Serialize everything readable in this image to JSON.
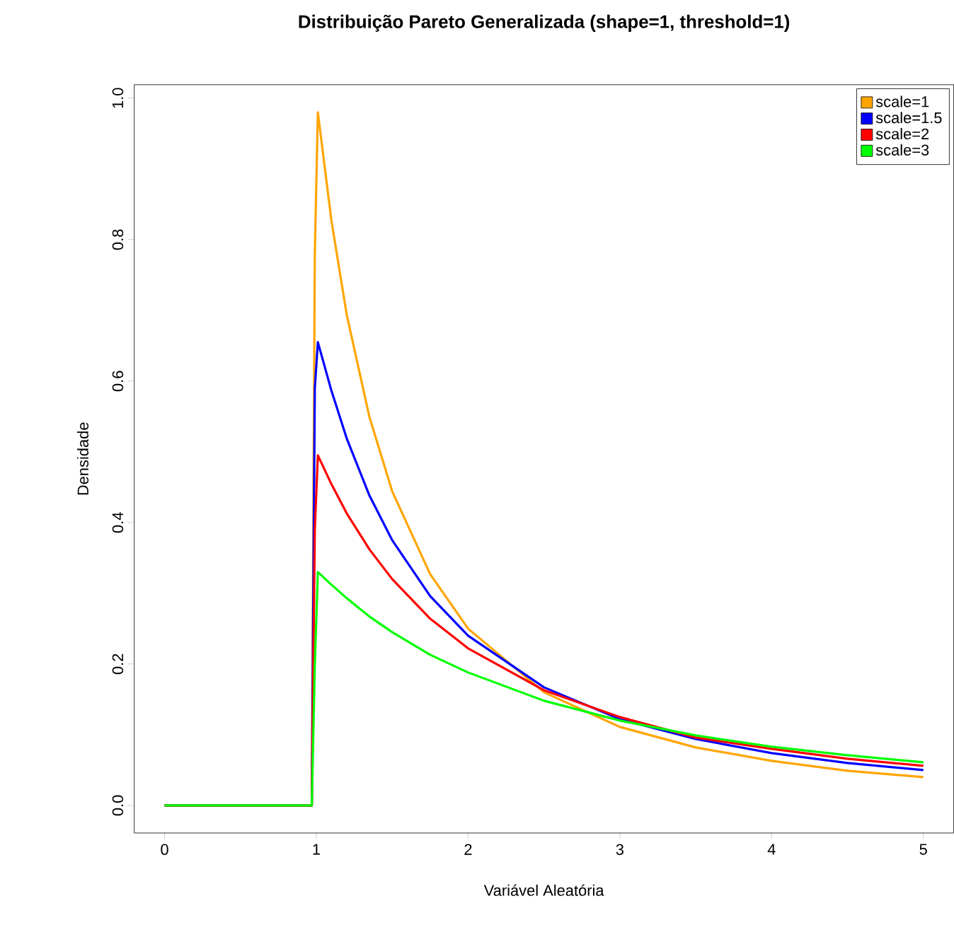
{
  "chart_data": {
    "type": "line",
    "title": "Distribuição Pareto Generalizada (shape=1, threshold=1)",
    "xlabel": "Variável Aleatória",
    "ylabel": "Densidade",
    "xlim": [
      -0.2,
      5.2
    ],
    "ylim": [
      -0.039,
      1.019
    ],
    "xticks": [
      0,
      1,
      2,
      3,
      4,
      5
    ],
    "yticks": [
      {
        "value": 0,
        "label": "0.0"
      },
      {
        "value": 0.2,
        "label": "0.2"
      },
      {
        "value": 0.4,
        "label": "0.4"
      },
      {
        "value": 0.6,
        "label": "0.6"
      },
      {
        "value": 0.8,
        "label": "0.8"
      },
      {
        "value": 1,
        "label": "1.0"
      }
    ],
    "grid": false,
    "legend": "top right",
    "line_style": "solid",
    "x": [
      0,
      0.97,
      0.99,
      1.01,
      1.1,
      1.2,
      1.35,
      1.5,
      1.75,
      2,
      2.5,
      3,
      3.5,
      4,
      4.5,
      5
    ],
    "series": [
      {
        "name": "scale=1",
        "color": "#ffa500",
        "values": [
          0,
          0,
          0.78,
          0.98,
          0.826,
          0.694,
          0.549,
          0.444,
          0.327,
          0.25,
          0.16,
          0.111,
          0.082,
          0.063,
          0.049,
          0.04
        ]
      },
      {
        "name": "scale=1.5",
        "color": "#0000ff",
        "values": [
          0,
          0,
          0.59,
          0.655,
          0.586,
          0.519,
          0.438,
          0.375,
          0.296,
          0.24,
          0.167,
          0.122,
          0.094,
          0.074,
          0.06,
          0.05
        ]
      },
      {
        "name": "scale=2",
        "color": "#ff0000",
        "values": [
          0,
          0,
          0.39,
          0.495,
          0.454,
          0.413,
          0.362,
          0.32,
          0.264,
          0.222,
          0.163,
          0.125,
          0.096,
          0.08,
          0.066,
          0.056
        ]
      },
      {
        "name": "scale=3",
        "color": "#00ff00",
        "values": [
          0,
          0,
          0.2,
          0.33,
          0.312,
          0.293,
          0.267,
          0.245,
          0.213,
          0.188,
          0.148,
          0.12,
          0.099,
          0.083,
          0.071,
          0.061
        ]
      }
    ]
  }
}
